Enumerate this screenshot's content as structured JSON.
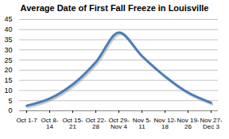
{
  "chart_data": {
    "type": "line",
    "title": "Average Date of First Fall Freeze in Louisville",
    "categories": [
      "Oct 1-7",
      "Oct 8-14",
      "Oct 15-21",
      "Oct 22-28",
      "Oct 29-Nov 4",
      "Nov 5-11",
      "Nov 12-18",
      "Nov 19-26",
      "Nov 27-Dec 3"
    ],
    "values": [
      2.5,
      6,
      13,
      24,
      38.5,
      27,
      17,
      9,
      4
    ],
    "color": "#4a7ebb",
    "ylim": [
      0,
      45
    ],
    "yticks": [
      0,
      5,
      10,
      15,
      20,
      25,
      30,
      35,
      40,
      45
    ],
    "grid": true
  }
}
